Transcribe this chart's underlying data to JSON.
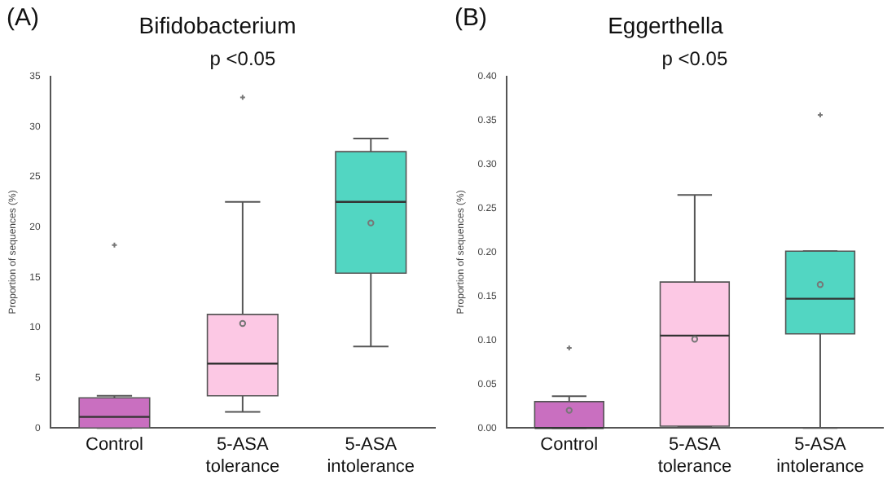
{
  "chart_data": [
    {
      "type": "box",
      "title": "Bifidobacterium",
      "ylabel": "Proportion of sequences (%)",
      "annotations": [
        "(A)",
        "p <0.05"
      ],
      "categories": [
        "Control",
        "5-ASA tolerance",
        "5-ASA intolerance"
      ],
      "colors": [
        "#c96fc0",
        "#fcc8e4",
        "#52d6c2"
      ],
      "boxes": [
        {
          "low": 0,
          "q1": 0,
          "median": 1.1,
          "q3": 3.0,
          "high": 3.2,
          "outliers": [
            18.2
          ]
        },
        {
          "low": 1.6,
          "q1": 3.2,
          "median": 6.4,
          "q3": 11.3,
          "high": 22.5,
          "mean": 10.4,
          "outliers": [
            32.9
          ]
        },
        {
          "low": 8.1,
          "q1": 15.4,
          "median": 22.5,
          "q3": 27.5,
          "high": 28.8,
          "mean": 20.4
        }
      ],
      "ylim": [
        0,
        35
      ],
      "yticks": [
        0,
        5,
        10,
        15,
        20,
        25,
        30,
        35
      ],
      "grid": false,
      "legend": false
    },
    {
      "type": "box",
      "title": "Eggerthella",
      "ylabel": "Proportion of sequences (%)",
      "annotations": [
        "(B)",
        "p <0.05"
      ],
      "categories": [
        "Control",
        "5-ASA tolerance",
        "5-ASA intolerance"
      ],
      "colors": [
        "#c96fc0",
        "#fcc8e4",
        "#52d6c2"
      ],
      "boxes": [
        {
          "low": 0,
          "q1": 0,
          "median": 0,
          "q3": 0.03,
          "high": 0.036,
          "mean": 0.02,
          "outliers": [
            0.091
          ]
        },
        {
          "low": 0.001,
          "q1": 0.002,
          "median": 0.105,
          "q3": 0.166,
          "high": 0.265,
          "mean": 0.101
        },
        {
          "low": 0,
          "q1": 0.107,
          "median": 0.147,
          "q3": 0.201,
          "high": 0.201,
          "mean": 0.163,
          "outliers": [
            0.356
          ]
        }
      ],
      "ylim": [
        0,
        0.4
      ],
      "yticks": [
        {
          "value": 0,
          "label": "0.00"
        },
        0.05,
        {
          "value": 0.1,
          "label": "0.10"
        },
        0.15,
        {
          "value": 0.2,
          "label": "0.20"
        },
        0.25,
        {
          "value": 0.3,
          "label": "0.30"
        },
        0.35,
        {
          "value": 0.4,
          "label": "0.40"
        }
      ],
      "grid": false,
      "legend": false
    }
  ]
}
